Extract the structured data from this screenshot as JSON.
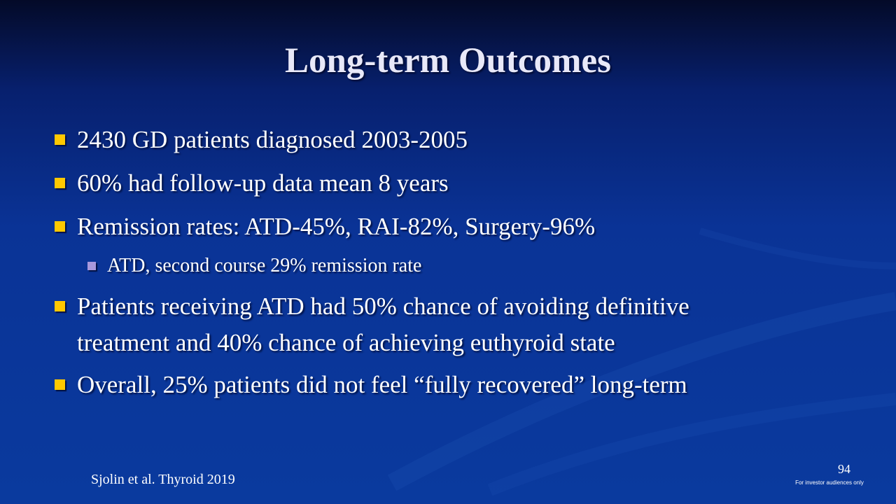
{
  "slide": {
    "title": "Long-term Outcomes",
    "bullets": [
      {
        "text": "2430 GD patients diagnosed 2003-2005"
      },
      {
        "text": "60% had follow-up data mean 8 years"
      },
      {
        "text": "Remission rates: ATD-45%, RAI-82%, Surgery-96%"
      },
      {
        "text": "ATD, second course 29% remission rate",
        "level": 2
      },
      {
        "text_line1": "Patients receiving ATD had 50% chance of avoiding definitive",
        "text_line2": "treatment and 40% chance of achieving euthyroid state"
      },
      {
        "text": "Overall, 25% patients did not feel “fully recovered” long-term"
      }
    ],
    "citation": "Sjolin et al. Thyroid 2019",
    "page_number": "94",
    "footer_note": "For investor audiences only"
  },
  "colors": {
    "bullet": "#ffc800",
    "sub_bullet": "#a898dc",
    "background": "#0a3598"
  }
}
